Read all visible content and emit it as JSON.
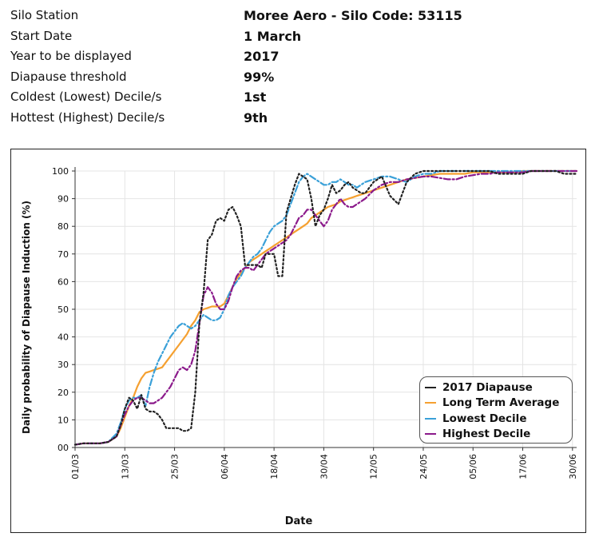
{
  "info": {
    "rows": [
      {
        "label": "Silo Station",
        "value": "Moree Aero - Silo Code: 53115"
      },
      {
        "label": "Start Date",
        "value": "1 March"
      },
      {
        "label": "Year to be displayed",
        "value": "2017"
      },
      {
        "label": "Diapause threshold",
        "value": "99%"
      },
      {
        "label": "Coldest (Lowest) Decile/s",
        "value": "1st"
      },
      {
        "label": "Hottest (Highest) Decile/s",
        "value": "9th"
      }
    ]
  },
  "chart_data": {
    "type": "line",
    "title": "",
    "xlabel": "Date",
    "ylabel": "Daily probability of Diapause Induction (%)",
    "ylim": [
      0,
      100
    ],
    "xlim": [
      0,
      121
    ],
    "yticks": [
      0,
      10,
      20,
      30,
      40,
      50,
      60,
      70,
      80,
      90,
      100
    ],
    "ytick_labels": [
      "00",
      "10",
      "20",
      "30",
      "40",
      "50",
      "60",
      "70",
      "80",
      "90",
      "100"
    ],
    "xticks": [
      0,
      12,
      24,
      36,
      48,
      60,
      72,
      84,
      96,
      108,
      120
    ],
    "xtick_labels": [
      "01/03",
      "13/03",
      "25/03",
      "06/04",
      "18/04",
      "30/04",
      "12/05",
      "24/05",
      "05/06",
      "17/06",
      "30/06"
    ],
    "grid": true,
    "legend_position": "bottom-right",
    "x": [
      0,
      2,
      4,
      6,
      8,
      10,
      11,
      12,
      13,
      14,
      15,
      16,
      17,
      18,
      19,
      20,
      21,
      22,
      23,
      24,
      25,
      26,
      27,
      28,
      29,
      30,
      31,
      32,
      33,
      34,
      35,
      36,
      37,
      38,
      39,
      40,
      41,
      42,
      43,
      44,
      45,
      46,
      47,
      48,
      49,
      50,
      51,
      52,
      53,
      54,
      55,
      56,
      57,
      58,
      59,
      60,
      61,
      62,
      63,
      64,
      65,
      66,
      67,
      68,
      69,
      70,
      72,
      74,
      76,
      78,
      80,
      82,
      84,
      86,
      88,
      90,
      92,
      94,
      96,
      98,
      100,
      102,
      104,
      106,
      108,
      110,
      112,
      114,
      116,
      118,
      120,
      121
    ],
    "series": [
      {
        "name": "2017 Diapause",
        "color": "#222222",
        "dash": "2,3",
        "values": [
          1,
          1.5,
          1.5,
          1.5,
          2,
          4,
          8,
          14,
          18,
          17,
          14,
          19,
          14,
          13,
          13,
          12,
          10,
          7,
          7,
          7,
          7,
          6,
          6,
          7,
          20,
          45,
          56,
          75,
          77,
          82,
          83,
          82,
          86,
          87,
          84,
          80,
          66,
          66,
          66,
          66,
          65,
          70,
          70,
          70,
          62,
          62,
          85,
          90,
          95,
          99,
          98,
          97,
          90,
          80,
          84,
          86,
          90,
          95,
          92,
          93,
          95,
          96,
          94,
          93,
          92,
          92,
          96,
          98,
          91,
          88,
          96,
          99,
          100,
          100,
          100,
          100,
          100,
          100,
          100,
          100,
          100,
          99,
          99,
          99,
          99,
          100,
          100,
          100,
          100,
          99,
          99,
          99
        ]
      },
      {
        "name": "Long Term Average",
        "color": "#f5a030",
        "dash": "",
        "values": [
          1,
          1.5,
          1.5,
          1.5,
          2,
          4,
          7,
          11,
          15,
          18,
          22,
          25,
          27,
          27.5,
          28,
          28.5,
          29,
          31,
          33,
          35,
          37,
          39,
          41,
          44,
          46,
          49,
          50,
          50.5,
          51,
          51,
          51,
          52,
          55,
          58,
          61,
          63,
          65,
          67,
          68,
          69,
          70,
          71,
          72,
          73,
          74,
          75,
          76,
          77,
          78,
          79,
          80,
          81,
          83,
          84,
          85,
          86,
          87,
          87.5,
          88,
          89,
          89.5,
          90,
          90.5,
          91,
          91.5,
          92,
          93,
          94,
          95,
          96,
          97,
          97.5,
          98,
          98.5,
          99,
          99,
          99,
          99,
          99.5,
          99.5,
          99.5,
          99.5,
          99.5,
          99.5,
          100,
          100,
          100,
          100,
          100,
          100,
          100,
          100
        ]
      },
      {
        "name": "Lowest Decile",
        "color": "#3aa0d8",
        "dash": "8,3,2,3",
        "values": [
          1,
          1.5,
          1.5,
          1.5,
          2,
          5,
          9,
          14,
          17,
          18,
          18,
          19,
          15,
          22,
          27,
          31,
          34,
          37,
          40,
          42,
          44,
          45,
          44,
          43,
          44,
          46,
          48,
          47,
          46,
          46,
          47,
          50,
          55,
          58,
          60,
          62,
          65,
          67,
          69,
          70,
          72,
          75,
          78,
          80,
          81,
          82,
          84,
          88,
          92,
          96,
          98,
          99,
          98,
          97,
          96,
          95,
          95,
          96,
          96,
          97,
          96,
          95,
          95,
          94,
          95,
          96,
          97,
          98,
          98,
          97,
          96,
          98,
          99,
          99,
          100,
          100,
          100,
          100,
          100,
          100,
          100,
          100,
          100,
          100,
          100,
          100,
          100,
          100,
          100,
          100,
          100,
          100
        ]
      },
      {
        "name": "Highest Decile",
        "color": "#8b1a8b",
        "dash": "8,3,2,3",
        "values": [
          1,
          1.5,
          1.5,
          1.5,
          2,
          4,
          8,
          12,
          15,
          17,
          18,
          18,
          17,
          16,
          16,
          17,
          18,
          20,
          22,
          25,
          28,
          29,
          28,
          30,
          35,
          45,
          55,
          58,
          56,
          52,
          50,
          50,
          53,
          58,
          62,
          64,
          65,
          65,
          64,
          66,
          68,
          70,
          71,
          72,
          73,
          74,
          75,
          77,
          80,
          83,
          84,
          86,
          86,
          84,
          82,
          80,
          82,
          86,
          88,
          90,
          88,
          87,
          87,
          88,
          89,
          90,
          93,
          95,
          96,
          96,
          97,
          97.5,
          98,
          98,
          97.5,
          97,
          97,
          98,
          98.5,
          99,
          99,
          99.5,
          99.5,
          99.5,
          99.5,
          100,
          100,
          100,
          100,
          100,
          100,
          100
        ]
      }
    ]
  }
}
